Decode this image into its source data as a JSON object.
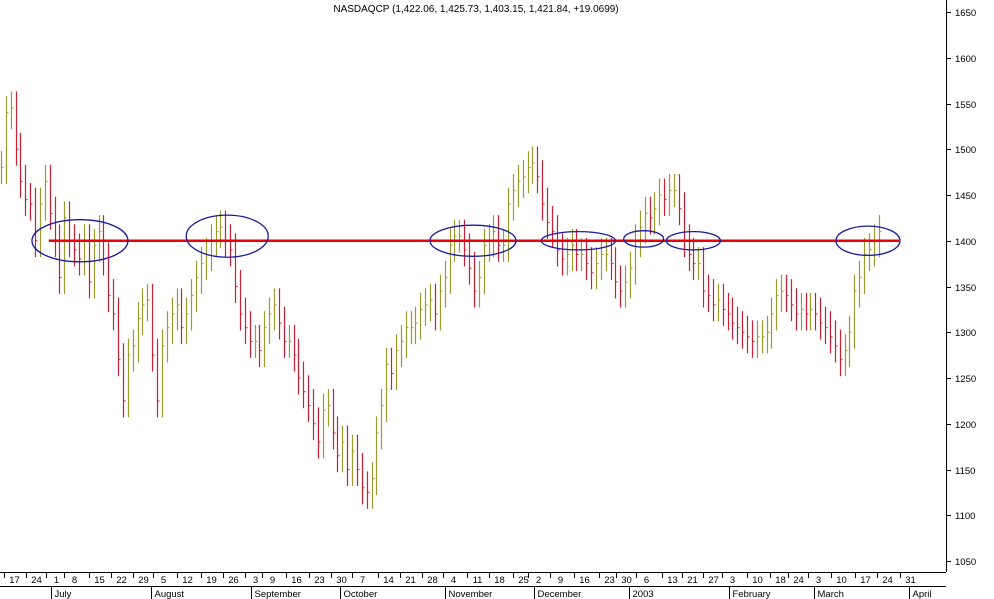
{
  "chart_data": {
    "type": "ohlc",
    "title": "NASDAQCP (1,422.06, 1,425.73, 1,403.15, 1,421.84, +19.0699)",
    "ylim": [
      1025,
      1675
    ],
    "y_ticks": [
      1050,
      1100,
      1150,
      1200,
      1250,
      1300,
      1350,
      1400,
      1450,
      1500,
      1550,
      1600,
      1650
    ],
    "x_range": [
      0,
      970
    ],
    "x_ticks": [
      {
        "label": "17",
        "x": 14
      },
      {
        "label": "24",
        "x": 37
      },
      {
        "label": "1",
        "x": 57
      },
      {
        "label": "8",
        "x": 76
      },
      {
        "label": "15",
        "x": 101
      },
      {
        "label": "22",
        "x": 124
      },
      {
        "label": "29",
        "x": 147
      },
      {
        "label": "5",
        "x": 167
      },
      {
        "label": "12",
        "x": 192
      },
      {
        "label": "19",
        "x": 216
      },
      {
        "label": "26",
        "x": 239
      },
      {
        "label": "3",
        "x": 261
      },
      {
        "label": "9",
        "x": 279
      },
      {
        "label": "16",
        "x": 303
      },
      {
        "label": "23",
        "x": 327
      },
      {
        "label": "30",
        "x": 350
      },
      {
        "label": "7",
        "x": 371
      },
      {
        "label": "14",
        "x": 398
      },
      {
        "label": "21",
        "x": 420
      },
      {
        "label": "28",
        "x": 443
      },
      {
        "label": "4",
        "x": 464
      },
      {
        "label": "11",
        "x": 489
      },
      {
        "label": "18",
        "x": 512
      },
      {
        "label": "25",
        "x": 536
      },
      {
        "label": "2",
        "x": 552
      },
      {
        "label": "9",
        "x": 574
      },
      {
        "label": "16",
        "x": 599
      },
      {
        "label": "23",
        "x": 624
      },
      {
        "label": "30",
        "x": 642
      },
      {
        "label": "6",
        "x": 662
      },
      {
        "label": "13",
        "x": 689
      },
      {
        "label": "21",
        "x": 710
      },
      {
        "label": "27",
        "x": 731
      },
      {
        "label": "3",
        "x": 751
      },
      {
        "label": "10",
        "x": 776
      },
      {
        "label": "18",
        "x": 800
      },
      {
        "label": "24",
        "x": 818
      },
      {
        "label": "3",
        "x": 839
      },
      {
        "label": "10",
        "x": 862
      },
      {
        "label": "17",
        "x": 887
      },
      {
        "label": "24",
        "x": 909
      },
      {
        "label": "31",
        "x": 933
      }
    ],
    "month_labels": [
      {
        "label": "July",
        "x": 52
      },
      {
        "label": "August",
        "x": 155
      },
      {
        "label": "September",
        "x": 257
      },
      {
        "label": "October",
        "x": 349
      },
      {
        "label": "November",
        "x": 456
      },
      {
        "label": "December",
        "x": 548
      },
      {
        "label": "2003",
        "x": 645
      },
      {
        "label": "February",
        "x": 747
      },
      {
        "label": "March",
        "x": 835
      },
      {
        "label": "April",
        "x": 932
      }
    ],
    "reference_line": {
      "value": 1400,
      "x_start": 50,
      "x_end": 922,
      "color": "#e8000b"
    },
    "ellipses": [
      {
        "cx": 82,
        "cy_value": 1400,
        "rx": 48,
        "ry_value": 23
      },
      {
        "cx": 233,
        "cy_value": 1405,
        "rx": 41,
        "ry_value": 23
      },
      {
        "cx": 485,
        "cy_value": 1400,
        "rx": 43,
        "ry_value": 17
      },
      {
        "cx": 593,
        "cy_value": 1400,
        "rx": 37,
        "ry_value": 10
      },
      {
        "cx": 660,
        "cy_value": 1402,
        "rx": 20,
        "ry_value": 9
      },
      {
        "cx": 711,
        "cy_value": 1400,
        "rx": 27,
        "ry_value": 10
      },
      {
        "cx": 890,
        "cy_value": 1400,
        "rx": 32,
        "ry_value": 16
      }
    ],
    "bar_points": [
      [
        1,
        1480
      ],
      [
        6,
        1540
      ],
      [
        11,
        1545
      ],
      [
        16,
        1500
      ],
      [
        21,
        1465
      ],
      [
        26,
        1445
      ],
      [
        31,
        1440
      ],
      [
        36,
        1400
      ],
      [
        41,
        1440
      ],
      [
        46,
        1465
      ],
      [
        51,
        1430
      ],
      [
        56,
        1400
      ],
      [
        61,
        1360
      ],
      [
        66,
        1425
      ],
      [
        71,
        1400
      ],
      [
        76,
        1390
      ],
      [
        81,
        1380
      ],
      [
        86,
        1400
      ],
      [
        91,
        1355
      ],
      [
        96,
        1395
      ],
      [
        101,
        1410
      ],
      [
        106,
        1380
      ],
      [
        111,
        1340
      ],
      [
        116,
        1320
      ],
      [
        121,
        1270
      ],
      [
        126,
        1225
      ],
      [
        131,
        1275
      ],
      [
        136,
        1285
      ],
      [
        141,
        1315
      ],
      [
        146,
        1330
      ],
      [
        151,
        1335
      ],
      [
        156,
        1275
      ],
      [
        161,
        1225
      ],
      [
        166,
        1285
      ],
      [
        171,
        1305
      ],
      [
        176,
        1320
      ],
      [
        181,
        1330
      ],
      [
        186,
        1305
      ],
      [
        191,
        1320
      ],
      [
        196,
        1340
      ],
      [
        201,
        1360
      ],
      [
        206,
        1375
      ],
      [
        211,
        1385
      ],
      [
        216,
        1400
      ],
      [
        221,
        1410
      ],
      [
        226,
        1415
      ],
      [
        231,
        1400
      ],
      [
        236,
        1390
      ],
      [
        241,
        1350
      ],
      [
        246,
        1320
      ],
      [
        251,
        1305
      ],
      [
        256,
        1290
      ],
      [
        261,
        1290
      ],
      [
        266,
        1280
      ],
      [
        271,
        1305
      ],
      [
        276,
        1320
      ],
      [
        281,
        1330
      ],
      [
        286,
        1310
      ],
      [
        291,
        1290
      ],
      [
        296,
        1290
      ],
      [
        301,
        1275
      ],
      [
        306,
        1250
      ],
      [
        311,
        1235
      ],
      [
        316,
        1220
      ],
      [
        321,
        1200
      ],
      [
        326,
        1180
      ],
      [
        331,
        1215
      ],
      [
        336,
        1220
      ],
      [
        341,
        1190
      ],
      [
        346,
        1165
      ],
      [
        351,
        1180
      ],
      [
        356,
        1150
      ],
      [
        361,
        1170
      ],
      [
        366,
        1150
      ],
      [
        371,
        1130
      ],
      [
        376,
        1125
      ],
      [
        381,
        1140
      ],
      [
        386,
        1190
      ],
      [
        391,
        1220
      ],
      [
        396,
        1265
      ],
      [
        401,
        1255
      ],
      [
        406,
        1280
      ],
      [
        411,
        1290
      ],
      [
        416,
        1305
      ],
      [
        421,
        1305
      ],
      [
        426,
        1310
      ],
      [
        431,
        1325
      ],
      [
        436,
        1330
      ],
      [
        441,
        1335
      ],
      [
        446,
        1320
      ],
      [
        451,
        1345
      ],
      [
        456,
        1360
      ],
      [
        461,
        1395
      ],
      [
        466,
        1405
      ],
      [
        471,
        1405
      ],
      [
        476,
        1390
      ],
      [
        481,
        1370
      ],
      [
        486,
        1345
      ],
      [
        491,
        1360
      ],
      [
        496,
        1395
      ],
      [
        501,
        1400
      ],
      [
        506,
        1410
      ],
      [
        511,
        1395
      ],
      [
        516,
        1395
      ],
      [
        521,
        1440
      ],
      [
        526,
        1455
      ],
      [
        531,
        1465
      ],
      [
        536,
        1470
      ],
      [
        541,
        1480
      ],
      [
        546,
        1485
      ],
      [
        551,
        1470
      ],
      [
        556,
        1440
      ],
      [
        561,
        1420
      ],
      [
        566,
        1410
      ],
      [
        571,
        1390
      ],
      [
        576,
        1380
      ],
      [
        581,
        1385
      ],
      [
        586,
        1395
      ],
      [
        591,
        1385
      ],
      [
        596,
        1385
      ],
      [
        601,
        1375
      ],
      [
        606,
        1365
      ],
      [
        611,
        1375
      ],
      [
        616,
        1385
      ],
      [
        621,
        1385
      ],
      [
        626,
        1375
      ],
      [
        631,
        1355
      ],
      [
        636,
        1345
      ],
      [
        641,
        1355
      ],
      [
        646,
        1370
      ],
      [
        651,
        1400
      ],
      [
        656,
        1415
      ],
      [
        661,
        1430
      ],
      [
        666,
        1425
      ],
      [
        671,
        1435
      ],
      [
        676,
        1450
      ],
      [
        681,
        1445
      ],
      [
        686,
        1455
      ],
      [
        691,
        1455
      ],
      [
        696,
        1435
      ],
      [
        701,
        1400
      ],
      [
        706,
        1385
      ],
      [
        711,
        1375
      ],
      [
        716,
        1375
      ],
      [
        721,
        1345
      ],
      [
        726,
        1340
      ],
      [
        731,
        1330
      ],
      [
        736,
        1335
      ],
      [
        741,
        1325
      ],
      [
        746,
        1320
      ],
      [
        751,
        1310
      ],
      [
        756,
        1305
      ],
      [
        761,
        1300
      ],
      [
        766,
        1295
      ],
      [
        771,
        1290
      ],
      [
        776,
        1295
      ],
      [
        781,
        1295
      ],
      [
        786,
        1300
      ],
      [
        791,
        1320
      ],
      [
        796,
        1340
      ],
      [
        801,
        1345
      ],
      [
        806,
        1340
      ],
      [
        811,
        1330
      ],
      [
        816,
        1320
      ],
      [
        821,
        1325
      ],
      [
        826,
        1320
      ],
      [
        831,
        1325
      ],
      [
        836,
        1320
      ],
      [
        841,
        1310
      ],
      [
        846,
        1305
      ],
      [
        851,
        1295
      ],
      [
        856,
        1285
      ],
      [
        861,
        1270
      ],
      [
        866,
        1280
      ],
      [
        871,
        1300
      ],
      [
        876,
        1345
      ],
      [
        881,
        1360
      ],
      [
        886,
        1385
      ],
      [
        891,
        1390
      ],
      [
        896,
        1400
      ],
      [
        901,
        1410
      ]
    ],
    "up_color": "#9a9a2e",
    "down_color": "#cc1f36",
    "ellipse_color": "#1a1aa0",
    "grid": false
  }
}
